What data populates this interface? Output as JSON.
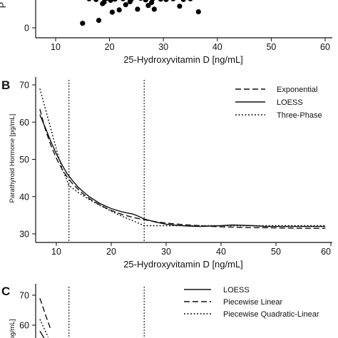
{
  "chart_data": [
    {
      "panel": "A",
      "type": "scatter",
      "xlabel": "25-Hydroxyvitamin D [ng/mL]",
      "ylabel": "P",
      "xlim": [
        5,
        62
      ],
      "x_ticks": [
        10,
        20,
        30,
        40,
        50,
        60
      ],
      "y_ticks": [
        0
      ],
      "points": [
        {
          "x": 15.0,
          "y": 1.2
        },
        {
          "x": 18.0,
          "y": 2.0
        },
        {
          "x": 18.7,
          "y": 6.5
        },
        {
          "x": 20.5,
          "y": 4.2
        },
        {
          "x": 21.8,
          "y": 4.8
        },
        {
          "x": 23.0,
          "y": 6.2
        },
        {
          "x": 25.2,
          "y": 5.0
        },
        {
          "x": 27.2,
          "y": 6.0
        },
        {
          "x": 28.3,
          "y": 5.0
        },
        {
          "x": 33.0,
          "y": 5.8
        },
        {
          "x": 36.5,
          "y": 4.3
        },
        {
          "x": 16.2,
          "y": 7.8
        },
        {
          "x": 17.5,
          "y": 7.6
        },
        {
          "x": 19.5,
          "y": 7.9
        },
        {
          "x": 20.2,
          "y": 7.4
        },
        {
          "x": 21.0,
          "y": 7.7
        },
        {
          "x": 22.5,
          "y": 7.8
        },
        {
          "x": 24.0,
          "y": 7.6
        },
        {
          "x": 25.8,
          "y": 7.9
        },
        {
          "x": 26.7,
          "y": 7.5
        },
        {
          "x": 28.0,
          "y": 7.8
        },
        {
          "x": 29.5,
          "y": 7.7
        },
        {
          "x": 30.5,
          "y": 7.6
        },
        {
          "x": 31.8,
          "y": 7.8
        },
        {
          "x": 33.7,
          "y": 7.6
        },
        {
          "x": 35.0,
          "y": 7.8
        },
        {
          "x": 19.0,
          "y": 6.9
        },
        {
          "x": 23.8,
          "y": 7.0
        },
        {
          "x": 27.8,
          "y": 6.8
        }
      ]
    },
    {
      "panel": "B",
      "type": "line",
      "xlabel": "25-Hydroxyvitamin D [ng/mL]",
      "ylabel": "Parathyroid Hormone [pg/mL]",
      "xlim": [
        5,
        61
      ],
      "ylim": [
        28,
        72
      ],
      "x_ticks": [
        10,
        20,
        30,
        40,
        50,
        60
      ],
      "x_tick_labels": [
        "10",
        "20",
        "30",
        "40",
        "50",
        "60"
      ],
      "y_ticks": [
        30,
        40,
        50,
        60,
        70
      ],
      "vertical_reference_lines": [
        12.3,
        26.0
      ],
      "legend_position": "top-right",
      "series": [
        {
          "name": "Exponential",
          "dash": "dashed",
          "x": [
            7,
            8,
            9,
            10,
            11,
            12,
            13,
            14,
            15,
            16,
            18,
            20,
            22,
            24,
            26,
            28,
            30,
            33,
            36,
            40,
            45,
            50,
            55,
            59
          ],
          "y": [
            63.5,
            58.0,
            53.8,
            50.3,
            47.5,
            45.2,
            43.4,
            41.9,
            40.6,
            39.5,
            37.7,
            36.3,
            35.2,
            34.4,
            33.8,
            33.3,
            32.9,
            32.5,
            32.2,
            31.9,
            31.7,
            31.6,
            31.5,
            31.5
          ]
        },
        {
          "name": "LOESS",
          "dash": "solid",
          "x": [
            7,
            8,
            9,
            10,
            11,
            12,
            13,
            14,
            15,
            16,
            18,
            20,
            22,
            24,
            25,
            26,
            28,
            30,
            32,
            34,
            36,
            38,
            40,
            42,
            44,
            46,
            48,
            50,
            55,
            59
          ],
          "y": [
            62.0,
            58.5,
            54.8,
            51.5,
            48.6,
            46.1,
            44.2,
            42.5,
            41.2,
            40.0,
            38.1,
            36.8,
            35.9,
            35.3,
            34.7,
            34.0,
            33.2,
            32.6,
            32.3,
            32.1,
            32.0,
            32.1,
            32.2,
            32.4,
            32.3,
            32.2,
            32.0,
            32.0,
            32.0,
            32.0
          ]
        },
        {
          "name": "Three-Phase",
          "dash": "dotted",
          "x": [
            7,
            8,
            9,
            10,
            11,
            12.3,
            14,
            16,
            18,
            20,
            22,
            24,
            26,
            59
          ],
          "y": [
            69.0,
            63.6,
            58.2,
            52.8,
            47.8,
            43.0,
            41.1,
            39.2,
            37.6,
            36.1,
            34.7,
            33.5,
            32.2,
            32.2
          ]
        }
      ]
    },
    {
      "panel": "C",
      "type": "line",
      "ylabel": "pg/mL]",
      "xlim": [
        5,
        61
      ],
      "ylim": [
        28,
        72
      ],
      "y_ticks": [
        60,
        70
      ],
      "vertical_reference_lines": [
        12.3,
        26.0
      ],
      "legend_position": "top-right",
      "series": [
        {
          "name": "LOESS",
          "dash": "solid",
          "x": [
            7,
            7.5,
            8,
            8.5
          ],
          "y": [
            58.0,
            56.5,
            55.0,
            53.5
          ]
        },
        {
          "name": "Piecewise Linear",
          "dash": "dashed",
          "x": [
            7,
            7.5,
            8,
            8.5,
            9
          ],
          "y": [
            69.0,
            66.3,
            63.6,
            61.0,
            58.5
          ]
        },
        {
          "name": "Piecewise Quadratic-Linear",
          "dash": "dotted",
          "x": [
            7,
            7.5,
            8,
            8.5
          ],
          "y": [
            62.0,
            60.0,
            58.0,
            56.0
          ]
        }
      ]
    }
  ],
  "panel_labels": {
    "b": "B",
    "c": "C"
  }
}
